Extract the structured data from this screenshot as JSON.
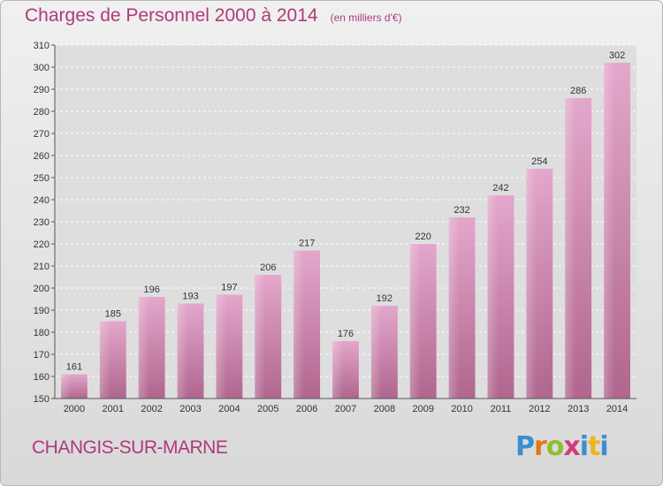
{
  "header": {
    "title": "Charges de Personnel 2000 à 2014",
    "subtitle": "(en milliers d'€)"
  },
  "footer": {
    "commune": "CHANGIS-SUR-MARNE",
    "logo_text": "Proxiti"
  },
  "colors": {
    "title": "#b03a78",
    "bar_top": "#e4a7cc",
    "bar_bottom": "#b0668e"
  },
  "chart_data": {
    "type": "bar",
    "categories": [
      "2000",
      "2001",
      "2002",
      "2003",
      "2004",
      "2005",
      "2006",
      "2007",
      "2008",
      "2009",
      "2010",
      "2011",
      "2012",
      "2013",
      "2014"
    ],
    "values": [
      161,
      185,
      196,
      193,
      197,
      206,
      217,
      176,
      192,
      220,
      232,
      242,
      254,
      286,
      302
    ],
    "ylim": [
      150,
      310
    ],
    "yticks": [
      150,
      160,
      170,
      180,
      190,
      200,
      210,
      220,
      230,
      240,
      250,
      260,
      270,
      280,
      290,
      300,
      310
    ],
    "grid": true,
    "data_labels": true
  }
}
